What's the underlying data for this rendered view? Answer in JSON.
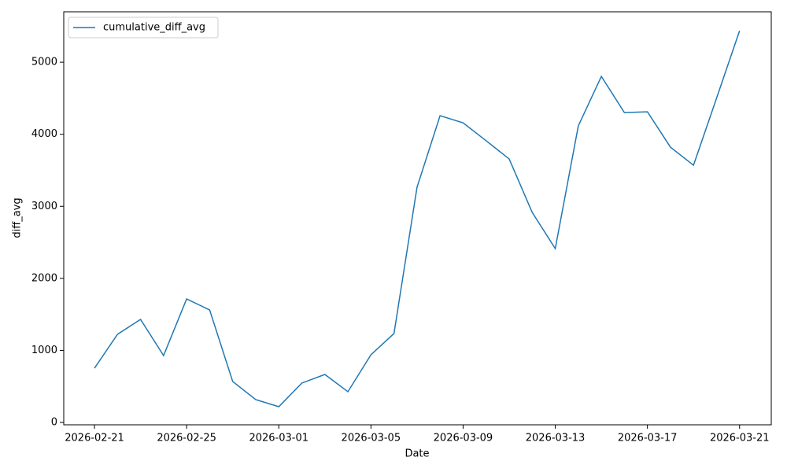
{
  "chart_data": {
    "type": "line",
    "x_label": "Date",
    "y_label": "diff_avg",
    "x": [
      "2026-02-21",
      "2026-02-22",
      "2026-02-23",
      "2026-02-24",
      "2026-02-25",
      "2026-02-26",
      "2026-02-27",
      "2026-02-28",
      "2026-03-01",
      "2026-03-02",
      "2026-03-03",
      "2026-03-04",
      "2026-03-05",
      "2026-03-06",
      "2026-03-07",
      "2026-03-08",
      "2026-03-09",
      "2026-03-10",
      "2026-03-11",
      "2026-03-12",
      "2026-03-13",
      "2026-03-14",
      "2026-03-15",
      "2026-03-16",
      "2026-03-17",
      "2026-03-18",
      "2026-03-19",
      "2026-03-20",
      "2026-03-21"
    ],
    "series": [
      {
        "name": "cumulative_diff_avg",
        "color": "#1f77b4",
        "values": [
          753,
          1223,
          1430,
          928,
          1714,
          1561,
          568,
          317,
          218,
          546,
          666,
          426,
          939,
          1234,
          3264,
          4258,
          4159,
          3910,
          3657,
          2915,
          2413,
          4116,
          4803,
          4301,
          4312,
          3821,
          3570,
          4500,
          5437
        ]
      }
    ],
    "xlim": [
      "2026-02-19T16:00",
      "2026-03-22T09:00"
    ],
    "xticks": [
      "2026-02-21",
      "2026-02-25",
      "2026-03-01",
      "2026-03-05",
      "2026-03-09",
      "2026-03-13",
      "2026-03-17",
      "2026-03-21"
    ],
    "ylim": [
      -33,
      5700
    ],
    "yticks": [
      0,
      1000,
      2000,
      3000,
      4000,
      5000
    ],
    "grid": false,
    "legend": "upper left"
  }
}
